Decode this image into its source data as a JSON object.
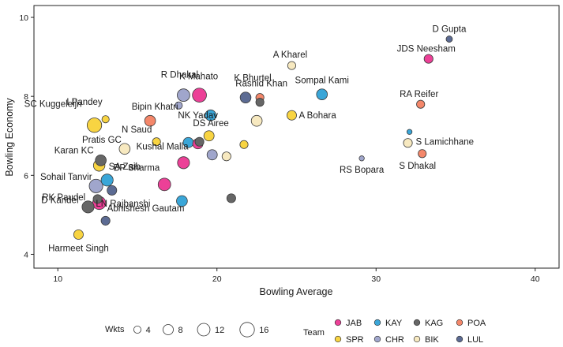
{
  "chart_data": {
    "type": "scatter",
    "title": "",
    "xlabel": "Bowling Average",
    "ylabel": "Bowling Economy",
    "xlim": [
      8.5,
      41.5
    ],
    "ylim": [
      3.65,
      10.3
    ],
    "x_ticks": [
      10,
      20,
      30,
      40
    ],
    "y_ticks": [
      4,
      6,
      8,
      10
    ],
    "grid": false,
    "size_legend": {
      "title": "Wkts",
      "values": [
        4,
        8,
        12,
        16
      ]
    },
    "team_legend": {
      "title": "Team",
      "items": [
        {
          "code": "JAB",
          "color": "#ec4097"
        },
        {
          "code": "KAY",
          "color": "#3aa6d8"
        },
        {
          "code": "KAG",
          "color": "#666666"
        },
        {
          "code": "POA",
          "color": "#f4876a"
        },
        {
          "code": "SPR",
          "color": "#f8d442"
        },
        {
          "code": "CHR",
          "color": "#a0a6cc"
        },
        {
          "code": "BIK",
          "color": "#f7e9c0"
        },
        {
          "code": "LUL",
          "color": "#5c6b93"
        }
      ]
    },
    "points": [
      {
        "x": 34.6,
        "y": 9.45,
        "wkts": 3,
        "team": "LUL",
        "label": "D Gupta"
      },
      {
        "x": 33.3,
        "y": 8.95,
        "wkts": 6,
        "team": "JAB",
        "label": "JDS Neesham"
      },
      {
        "x": 24.7,
        "y": 8.78,
        "wkts": 5,
        "team": "BIK",
        "label": "A Kharel"
      },
      {
        "x": 26.6,
        "y": 8.05,
        "wkts": 9,
        "team": "KAY",
        "label": "Sompal Kami"
      },
      {
        "x": 32.8,
        "y": 7.8,
        "wkts": 5,
        "team": "POA",
        "label": "RA Reifer"
      },
      {
        "x": 24.7,
        "y": 7.52,
        "wkts": 7,
        "team": "SPR",
        "label": "A Bohara"
      },
      {
        "x": 22.7,
        "y": 7.97,
        "wkts": 5,
        "team": "POA",
        "label": "Rashid Khan"
      },
      {
        "x": 22.7,
        "y": 7.85,
        "wkts": 5,
        "team": "KAG",
        "label": ""
      },
      {
        "x": 21.8,
        "y": 7.97,
        "wkts": 9,
        "team": "LUL",
        "label": "K Bhurtel"
      },
      {
        "x": 18.9,
        "y": 8.03,
        "wkts": 15,
        "team": "JAB",
        "label": "K Mahato"
      },
      {
        "x": 17.9,
        "y": 8.03,
        "wkts": 12,
        "team": "CHR",
        "label": "R Dhakal"
      },
      {
        "x": 17.6,
        "y": 7.77,
        "wkts": 4,
        "team": "CHR",
        "label": ""
      },
      {
        "x": 19.6,
        "y": 7.52,
        "wkts": 9,
        "team": "KAY",
        "label": "NK Yadav"
      },
      {
        "x": 22.5,
        "y": 7.38,
        "wkts": 9,
        "team": "BIK",
        "label": "DS Airee"
      },
      {
        "x": 12.3,
        "y": 7.27,
        "wkts": 16,
        "team": "SPR",
        "label": "SC Kuggeleijn"
      },
      {
        "x": 13.0,
        "y": 7.42,
        "wkts": 4,
        "team": "SPR",
        "label": "I Pandey"
      },
      {
        "x": 15.8,
        "y": 7.38,
        "wkts": 9,
        "team": "POA",
        "label": "Bipin Khatri"
      },
      {
        "x": 14.2,
        "y": 6.67,
        "wkts": 9,
        "team": "BIK",
        "label": "Pratis GC"
      },
      {
        "x": 16.2,
        "y": 6.85,
        "wkts": 5,
        "team": "SPR",
        "label": "N Saud"
      },
      {
        "x": 18.2,
        "y": 6.83,
        "wkts": 8,
        "team": "KAY",
        "label": ""
      },
      {
        "x": 18.8,
        "y": 6.8,
        "wkts": 8,
        "team": "JAB",
        "label": "Kushal Malla"
      },
      {
        "x": 18.9,
        "y": 6.85,
        "wkts": 6,
        "team": "KAG",
        "label": ""
      },
      {
        "x": 19.5,
        "y": 7.0,
        "wkts": 8,
        "team": "SPR",
        "label": ""
      },
      {
        "x": 21.7,
        "y": 6.78,
        "wkts": 5,
        "team": "SPR",
        "label": ""
      },
      {
        "x": 20.6,
        "y": 6.48,
        "wkts": 6,
        "team": "BIK",
        "label": ""
      },
      {
        "x": 19.7,
        "y": 6.52,
        "wkts": 8,
        "team": "CHR",
        "label": ""
      },
      {
        "x": 17.9,
        "y": 6.32,
        "wkts": 11,
        "team": "JAB",
        "label": ""
      },
      {
        "x": 32.0,
        "y": 6.82,
        "wkts": 6,
        "team": "BIK",
        "label": "S Lamichhane"
      },
      {
        "x": 32.1,
        "y": 7.1,
        "wkts": 2,
        "team": "KAY",
        "label": ""
      },
      {
        "x": 32.9,
        "y": 6.55,
        "wkts": 5,
        "team": "POA",
        "label": "S Dhakal"
      },
      {
        "x": 29.1,
        "y": 6.43,
        "wkts": 2,
        "team": "CHR",
        "label": "RS Bopara"
      },
      {
        "x": 12.7,
        "y": 6.38,
        "wkts": 9,
        "team": "KAG",
        "label": "Karan KC"
      },
      {
        "x": 12.6,
        "y": 6.25,
        "wkts": 10,
        "team": "SPR",
        "label": "SA Zaib"
      },
      {
        "x": 13.1,
        "y": 5.88,
        "wkts": 11,
        "team": "KAY",
        "label": "BP Sharma"
      },
      {
        "x": 12.4,
        "y": 5.73,
        "wkts": 14,
        "team": "CHR",
        "label": "Sohail Tanvir"
      },
      {
        "x": 13.4,
        "y": 5.62,
        "wkts": 7,
        "team": "LUL",
        "label": ""
      },
      {
        "x": 16.7,
        "y": 5.77,
        "wkts": 12,
        "team": "JAB",
        "label": "RK Paudel"
      },
      {
        "x": 17.8,
        "y": 5.35,
        "wkts": 9,
        "team": "KAY",
        "label": "LN Rajbanshi"
      },
      {
        "x": 12.6,
        "y": 5.3,
        "wkts": 13,
        "team": "JAB",
        "label": ""
      },
      {
        "x": 12.5,
        "y": 5.4,
        "wkts": 6,
        "team": "KAG",
        "label": ""
      },
      {
        "x": 11.9,
        "y": 5.2,
        "wkts": 11,
        "team": "KAG",
        "label": "D Kandel"
      },
      {
        "x": 20.9,
        "y": 5.42,
        "wkts": 6,
        "team": "KAG",
        "label": ""
      },
      {
        "x": 13.0,
        "y": 4.85,
        "wkts": 6,
        "team": "LUL",
        "label": "Abhishesh Gautam"
      },
      {
        "x": 11.3,
        "y": 4.5,
        "wkts": 7,
        "team": "SPR",
        "label": "Harmeet Singh"
      }
    ]
  }
}
